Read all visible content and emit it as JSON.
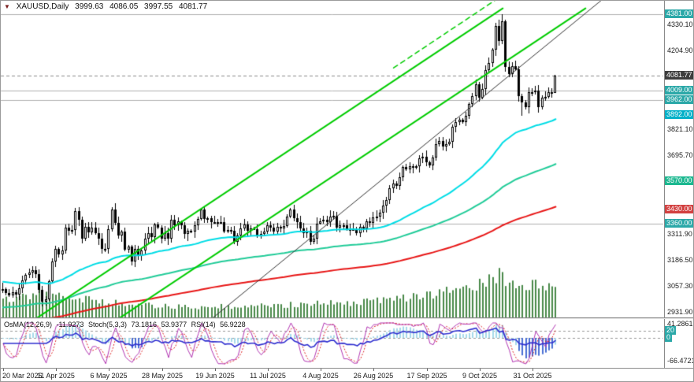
{
  "header": {
    "symbol_period": "XAUUSD,Daily",
    "open": "3999.63",
    "high": "4086.05",
    "low": "3997.55",
    "close": "4081.77"
  },
  "indicator_readout": {
    "osma_label": "OsMA(12,26,9)",
    "osma_value": "-11.9273",
    "stoch_label": "Stoch(5,3,3)",
    "stoch_k": "73.1816",
    "stoch_d": "53.9377",
    "rsi_label": "RSI(14)",
    "rsi_value": "56.9228"
  },
  "chart_data": {
    "type": "candlestick",
    "symbol": "XAUUSD",
    "timeframe": "Daily",
    "quote": {
      "open": 3999.63,
      "high": 4086.05,
      "low": 3997.55,
      "close": 4081.77
    },
    "oscillators": {
      "osma": -11.9273,
      "stoch_k": 73.1816,
      "stoch_d": 53.9377,
      "rsi": 56.9228
    },
    "x_ticks": [
      {
        "i": 0,
        "label": "20 Mar 2025"
      },
      {
        "i": 16,
        "label": "11 Apr 2025"
      },
      {
        "i": 32,
        "label": "6 May 2025"
      },
      {
        "i": 48,
        "label": "28 May 2025"
      },
      {
        "i": 64,
        "label": "19 Jun 2025"
      },
      {
        "i": 80,
        "label": "11 Jul 2025"
      },
      {
        "i": 96,
        "label": "4 Aug 2025"
      },
      {
        "i": 112,
        "label": "26 Aug 2025"
      },
      {
        "i": 128,
        "label": "17 Sep 2025"
      },
      {
        "i": 144,
        "label": "9 Oct 2025"
      },
      {
        "i": 160,
        "label": "31 Oct 2025"
      }
    ],
    "closes": [
      3045,
      3022,
      3011,
      3026,
      3018,
      3048,
      3086,
      3114,
      3123,
      3135,
      3115,
      3038,
      2982,
      2992,
      3082,
      3177,
      3237,
      3211,
      3230,
      3343,
      3327,
      3332,
      3424,
      3381,
      3288,
      3348,
      3319,
      3343,
      3316,
      3288,
      3239,
      3240,
      3334,
      3431,
      3364,
      3304,
      3324,
      3235,
      3249,
      3177,
      3240,
      3203,
      3230,
      3290,
      3315,
      3295,
      3357,
      3343,
      3287,
      3317,
      3289,
      3381,
      3353,
      3372,
      3352,
      3310,
      3326,
      3323,
      3355,
      3386,
      3432,
      3385,
      3389,
      3369,
      3370,
      3368,
      3368,
      3323,
      3332,
      3328,
      3274,
      3303,
      3339,
      3357,
      3326,
      3337,
      3336,
      3301,
      3313,
      3323,
      3355,
      3343,
      3325,
      3347,
      3339,
      3350,
      3397,
      3430,
      3387,
      3368,
      3337,
      3314,
      3326,
      3275,
      3290,
      3363,
      3373,
      3381,
      3369,
      3397,
      3398,
      3344,
      3353,
      3355,
      3335,
      3336,
      3334,
      3316,
      3348,
      3339,
      3372,
      3365,
      3393,
      3397,
      3417,
      3448,
      3476,
      3533,
      3559,
      3545,
      3587,
      3636,
      3626,
      3642,
      3634,
      3643,
      3679,
      3689,
      3660,
      3644,
      3685,
      3747,
      3764,
      3736,
      3749,
      3760,
      3833,
      3858,
      3866,
      3857,
      3886,
      3944,
      3983,
      4041,
      3976,
      4018,
      4110,
      4143,
      4209,
      4326,
      4251,
      4348,
      4125,
      4092,
      4127,
      4113,
      3983,
      3954,
      3930,
      4003,
      4002,
      4009,
      3931,
      3977,
      3980,
      4002,
      3999.63,
      4081.77
    ],
    "extremes": {
      "highs": {
        "22": 3440,
        "33": 3442,
        "151": 4381
      },
      "lows": {
        "12": 2957,
        "39": 3160,
        "157": 3886
      }
    },
    "volume_profile": [
      [
        0,
        30
      ],
      [
        8,
        38
      ],
      [
        14,
        46
      ],
      [
        22,
        36
      ],
      [
        30,
        26
      ],
      [
        45,
        20
      ],
      [
        60,
        18
      ],
      [
        80,
        20
      ],
      [
        95,
        24
      ],
      [
        110,
        26
      ],
      [
        120,
        32
      ],
      [
        130,
        38
      ],
      [
        140,
        48
      ],
      [
        146,
        58
      ],
      [
        151,
        72
      ],
      [
        156,
        62
      ],
      [
        160,
        54
      ],
      [
        167,
        48
      ]
    ],
    "volume_color": "#4a8a4a",
    "candle_up": "#ffffff",
    "candle_down": "#000000",
    "candle_border": "#000000",
    "y_axis": {
      "top": 4447,
      "bottom": 2905,
      "plain_ticks": [
        4330.1,
        4204.9,
        3821.1,
        3695.7,
        3311.9,
        3186.5,
        3057.3,
        2931.9
      ],
      "labels": [
        {
          "value": "4381.00",
          "price": 4381.0,
          "bg": "#2ba8a8"
        },
        {
          "value": "4081.77",
          "price": 4081.77,
          "bg": "#3d3d3d"
        },
        {
          "value": "4009.00",
          "price": 4009.0,
          "bg": "#2ba8a8"
        },
        {
          "value": "3962.00",
          "price": 3962.0,
          "bg": "#2ba8a8"
        },
        {
          "value": "3892.00",
          "price": 3892.0,
          "bg": "#00b0c8"
        },
        {
          "value": "3570.00",
          "price": 3570.0,
          "bg": "#1cb890"
        },
        {
          "value": "3430.00",
          "price": 3430.0,
          "bg": "#d24040"
        },
        {
          "value": "3360.00",
          "price": 3360.0,
          "bg": "#2ba8a8"
        }
      ]
    },
    "h_lines": [
      4381.0,
      4009.0,
      3962.0,
      3360.0
    ],
    "trend_lines": [
      {
        "i1": 10,
        "p1": 2900,
        "i2": 151,
        "p2": 4410,
        "color": "#00cc00",
        "width": 2,
        "dash": []
      },
      {
        "i1": 35,
        "p1": 2900,
        "i2": 176,
        "p2": 4410,
        "color": "#00cc00",
        "width": 2,
        "dash": []
      },
      {
        "i1": 118,
        "p1": 4120,
        "i2": 152,
        "p2": 4485,
        "color": "#00cc00",
        "width": 1.5,
        "dash": [
          6,
          5
        ]
      },
      {
        "i1": 63,
        "p1": 2898,
        "i2": 181,
        "p2": 4452,
        "color": "#333333",
        "width": 1,
        "dash": []
      }
    ],
    "moving_averages": [
      {
        "name": "ma-fast",
        "period": 55,
        "seed": 3080,
        "color": "#00dde6",
        "width": 2
      },
      {
        "name": "ma-mid",
        "period": 120,
        "seed": 2952,
        "color": "#22cc99",
        "width": 2
      },
      {
        "name": "ma-slow",
        "period": 220,
        "seed": 2878,
        "color": "#e81717",
        "width": 2
      }
    ],
    "indicator_pane": {
      "scale_refs": [
        {
          "text": "41.2861",
          "value": 41.2861
        },
        {
          "text": "-66.4721",
          "value": -66.4721
        }
      ],
      "levels": [
        {
          "text": "20",
          "value": 20,
          "bg": "#2ba8a8"
        },
        {
          "text": "0",
          "value": 0,
          "bg": "#2ba8a8"
        }
      ],
      "osma_color_light": "#a6d9ea",
      "osma_color_dark": "#4a6fd4",
      "stoch_k_color": "#b335b3",
      "stoch_d_color": "#e02626",
      "rsi_color": "#2f2fd0"
    }
  }
}
